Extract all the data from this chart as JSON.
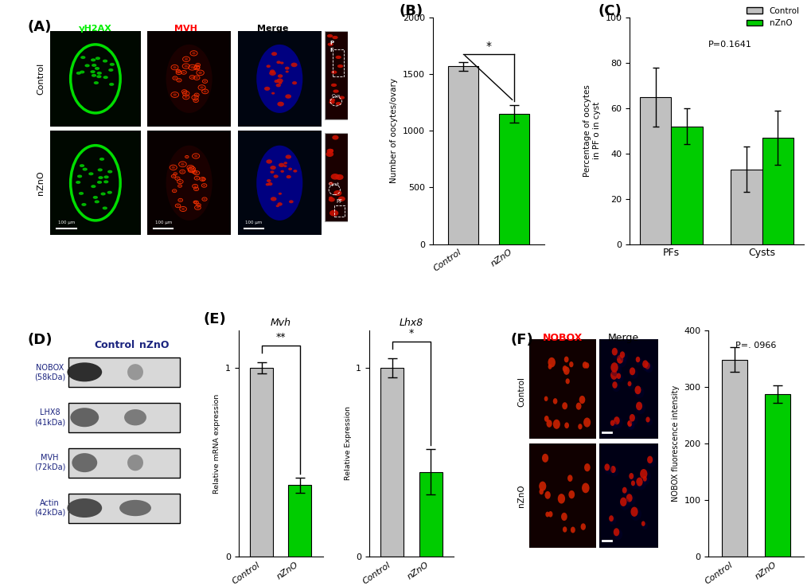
{
  "panel_B": {
    "categories": [
      "Control",
      "nZnO"
    ],
    "values": [
      1570,
      1150
    ],
    "errors": [
      40,
      80
    ],
    "colors": [
      "#c0c0c0",
      "#00cc00"
    ],
    "ylabel": "Number of oocytes/ovary",
    "ylim": [
      0,
      2000
    ],
    "yticks": [
      0,
      500,
      1000,
      1500,
      2000
    ],
    "significance": "*"
  },
  "panel_C": {
    "groups": [
      "PFs",
      "Cysts"
    ],
    "control_values": [
      65,
      33
    ],
    "nzno_values": [
      52,
      47
    ],
    "control_errors": [
      13,
      10
    ],
    "nzno_errors": [
      8,
      12
    ],
    "colors_control": "#c0c0c0",
    "colors_nzno": "#00cc00",
    "ylabel": "Percentage of oocytes\nin PF o in cyst",
    "ylim": [
      0,
      100
    ],
    "yticks": [
      0,
      20,
      40,
      60,
      80,
      100
    ],
    "pvalue": "P=0.1641",
    "legend_labels": [
      "Control",
      "nZnO"
    ]
  },
  "panel_E_mvh": {
    "categories": [
      "Control",
      "nZnO"
    ],
    "values": [
      1.0,
      0.38
    ],
    "errors": [
      0.03,
      0.04
    ],
    "colors": [
      "#c0c0c0",
      "#00cc00"
    ],
    "ylabel": "Relative mRNA expression",
    "title": "Mvh",
    "ylim": [
      0,
      1.2
    ],
    "yticks": [
      0,
      1
    ],
    "significance": "**"
  },
  "panel_E_lhx8": {
    "categories": [
      "Control",
      "nZnO"
    ],
    "values": [
      1.0,
      0.45
    ],
    "errors": [
      0.05,
      0.12
    ],
    "colors": [
      "#c0c0c0",
      "#00cc00"
    ],
    "ylabel": "Relative Expression",
    "title": "Lhx8",
    "ylim": [
      0,
      1.2
    ],
    "yticks": [
      0,
      1
    ],
    "significance": "*"
  },
  "panel_F_bar": {
    "categories": [
      "Control",
      "nZnO"
    ],
    "values": [
      348,
      287
    ],
    "errors": [
      22,
      15
    ],
    "colors": [
      "#c0c0c0",
      "#00cc00"
    ],
    "ylabel": "NOBOX fluorescence intensity",
    "ylim": [
      0,
      400
    ],
    "yticks": [
      0,
      100,
      200,
      300,
      400
    ],
    "pvalue": "P=. 0966"
  },
  "colors": {
    "gray": "#c0c0c0",
    "green": "#00cc00",
    "background": "#ffffff",
    "label_blue": "#1a237e"
  },
  "panel_labels": {
    "A": "(A)",
    "B": "(B)",
    "C": "(C)",
    "D": "(D)",
    "E": "(E)",
    "F": "(F)"
  },
  "wb_labels": [
    "NOBOX\n(58kDa)",
    "LHX8\n(41kDa)",
    "MVH\n(72kDa)",
    "Actin\n(42kDa)"
  ],
  "col_headers_A": [
    "γH2AX",
    "MVH",
    "Merge"
  ],
  "col_header_colors_A": [
    "#00ee00",
    "red",
    "black"
  ],
  "row_labels_A": [
    "Control",
    "nZnO"
  ],
  "nobox_label_color": "red",
  "merge_label_color": "black"
}
